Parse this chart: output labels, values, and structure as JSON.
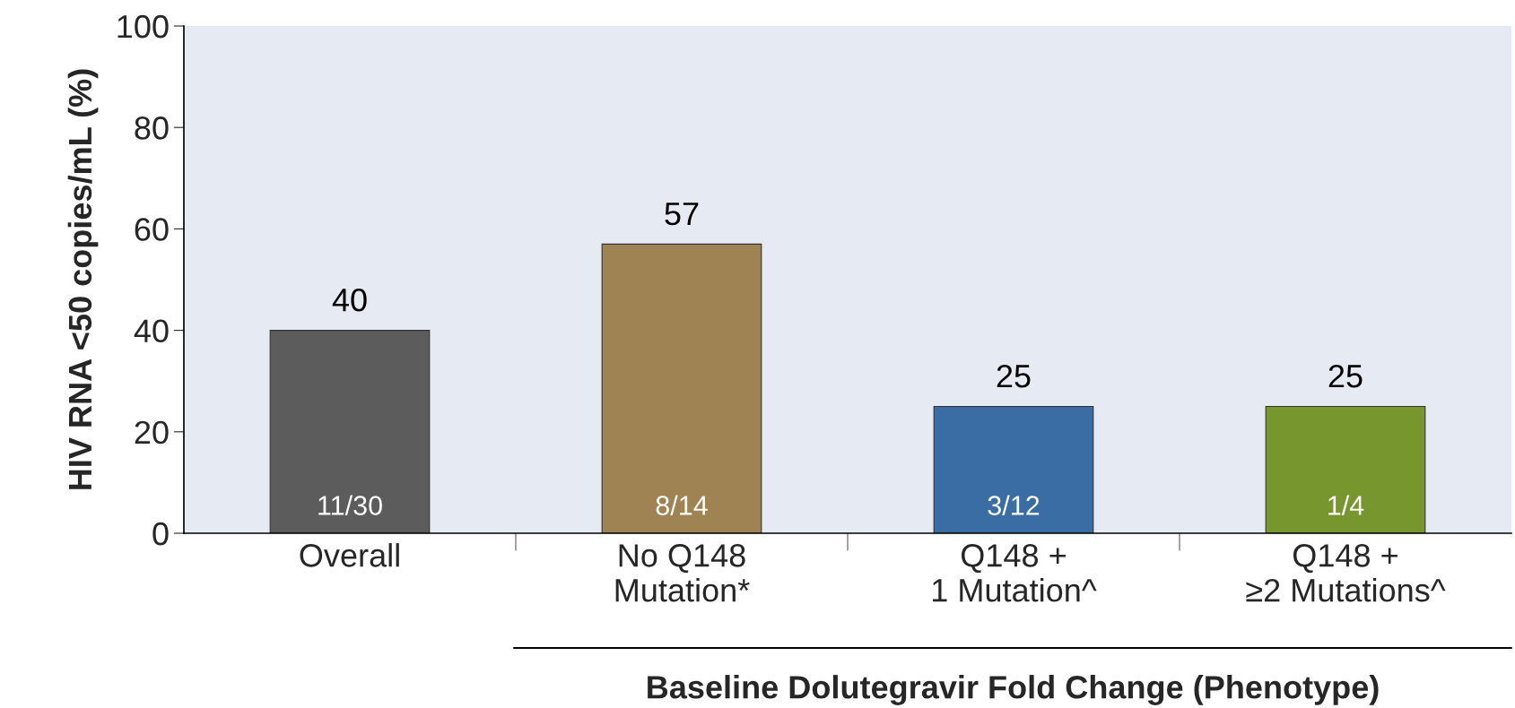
{
  "chart_data": {
    "type": "bar",
    "ylabel": "HIV RNA <50 copies/mL (%)",
    "xlabel": "Baseline Dolutegravir Fold Change (Phenotype)",
    "categories": [
      "Overall",
      "No Q148\nMutation*",
      "Q148 +\n1 Mutation^",
      "Q148 +\n≥2 Mutations^"
    ],
    "values": [
      40,
      57,
      25,
      25
    ],
    "colors": [
      "#5c5c5c",
      "#a08352",
      "#3a6da3",
      "#77962e"
    ],
    "data_labels": true,
    "annotations": [
      "11/30",
      "8/14",
      "3/12",
      "1/4"
    ],
    "ylim": [
      0,
      100
    ],
    "yticks": [
      0,
      20,
      40,
      60,
      80,
      100
    ],
    "grid": false,
    "legend": false
  }
}
